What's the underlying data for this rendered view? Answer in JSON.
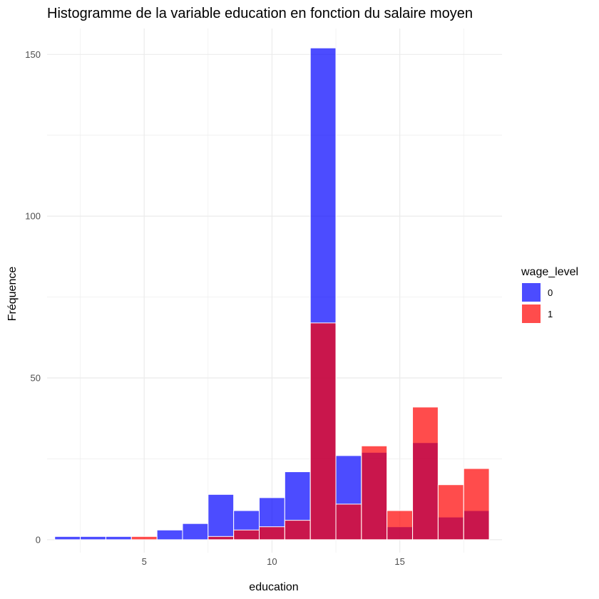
{
  "chart_data": {
    "type": "bar",
    "subtype": "overlaid-histogram",
    "title": "Histogramme de la variable education en fonction du salaire moyen",
    "xlabel": "education",
    "ylabel": "Fréquence",
    "xlim": [
      1.2,
      19.0
    ],
    "ylim": [
      -4,
      158
    ],
    "xticks": [
      5,
      10,
      15
    ],
    "yticks": [
      0,
      50,
      100,
      150
    ],
    "grid": true,
    "bin_width": 1,
    "bin_centers": [
      2,
      3,
      4,
      5,
      6,
      7,
      8,
      9,
      10,
      11,
      12,
      13,
      14,
      15,
      16,
      17,
      18
    ],
    "legend": {
      "title": "wage_level",
      "position": "right"
    },
    "series": [
      {
        "name": "0",
        "color": "#0000FF",
        "values": [
          1,
          1,
          1,
          0,
          3,
          5,
          14,
          9,
          13,
          21,
          152,
          26,
          27,
          4,
          30,
          7,
          9
        ]
      },
      {
        "name": "1",
        "color": "#FF0000",
        "values": [
          0,
          0,
          0,
          1,
          0,
          0,
          1,
          3,
          4,
          6,
          67,
          11,
          29,
          9,
          41,
          17,
          22
        ]
      }
    ]
  }
}
